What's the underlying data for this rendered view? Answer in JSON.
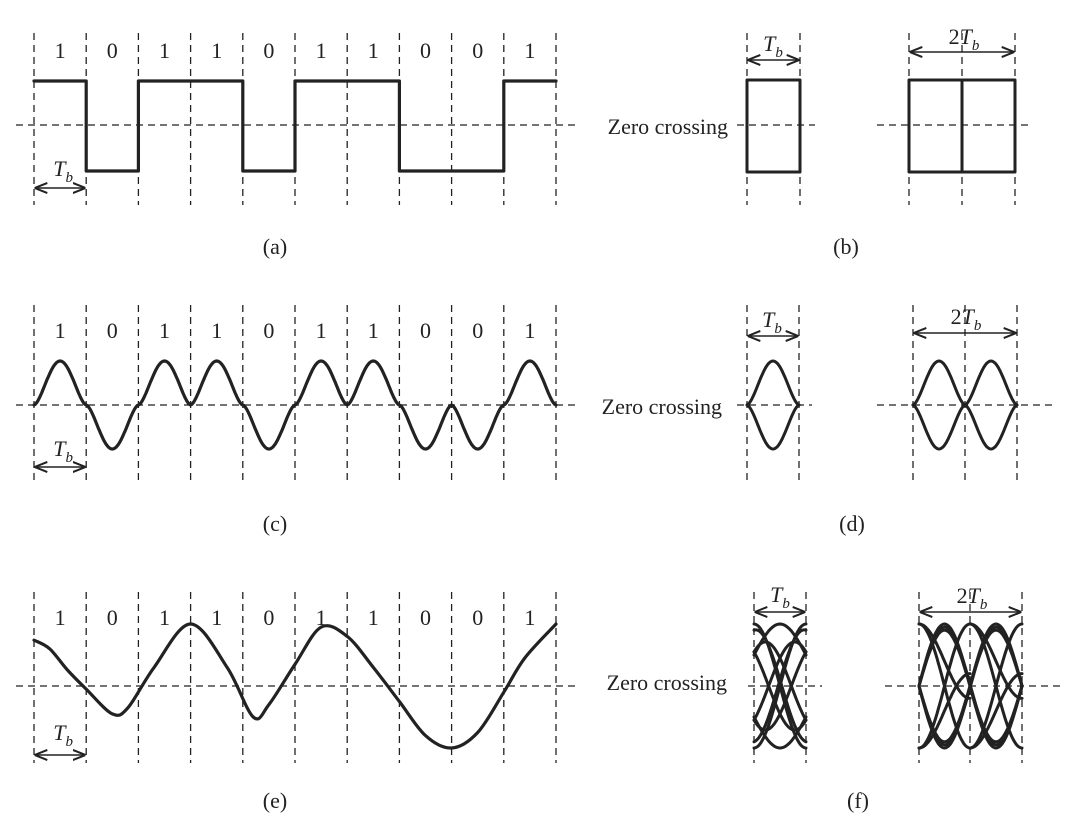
{
  "colors": {
    "ink": "#222222",
    "background": "#ffffff"
  },
  "bits": [
    "1",
    "0",
    "1",
    "1",
    "0",
    "1",
    "1",
    "0",
    "0",
    "1"
  ],
  "zero_crossing_label": "Zero crossing",
  "tb_label": "T",
  "tb_subscript": "b",
  "two_tb_prefix": "2",
  "panels": [
    {
      "id": "a",
      "caption": "(a)"
    },
    {
      "id": "b",
      "caption": "(b)"
    },
    {
      "id": "c",
      "caption": "(c)"
    },
    {
      "id": "d",
      "caption": "(d)"
    },
    {
      "id": "e",
      "caption": "(e)"
    },
    {
      "id": "f",
      "caption": "(f)"
    }
  ]
}
